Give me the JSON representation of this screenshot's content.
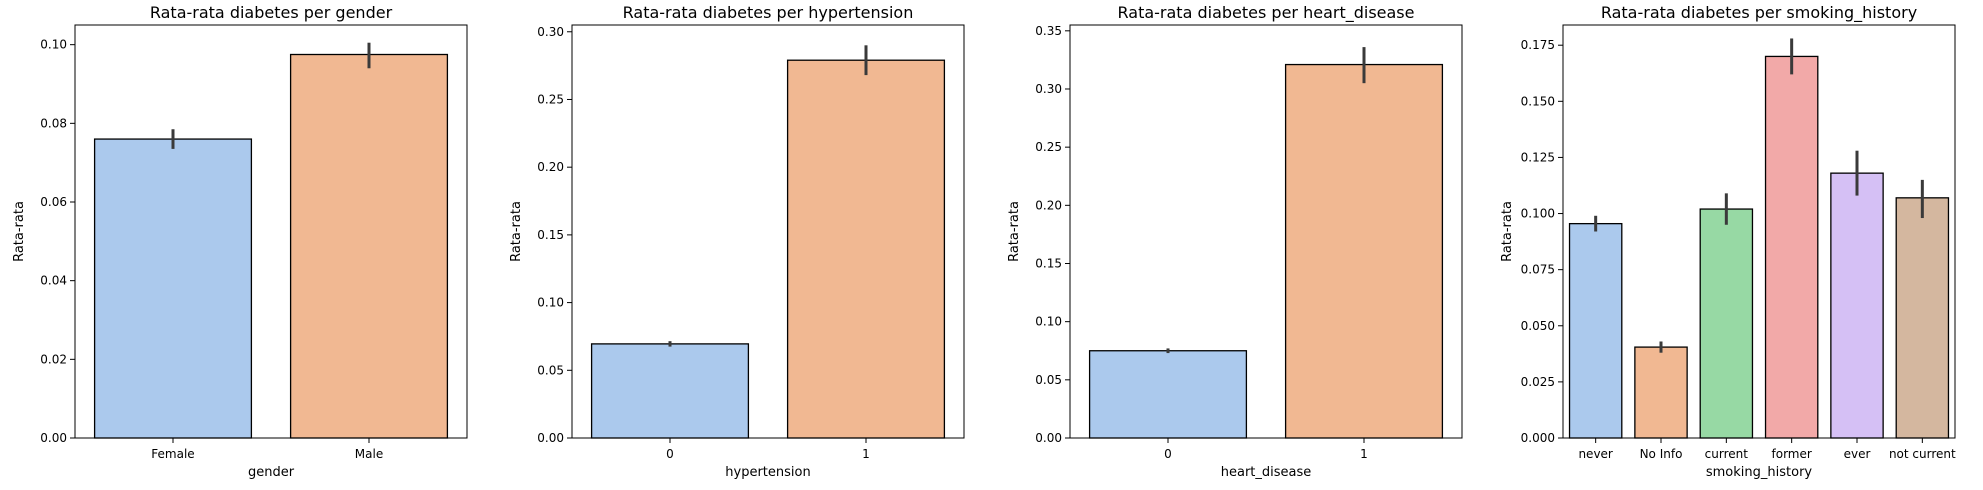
{
  "chart_data": [
    {
      "type": "bar",
      "title": "Rata-rata diabetes per gender",
      "xlabel": "gender",
      "ylabel": "Rata-rata",
      "categories": [
        "Female",
        "Male"
      ],
      "values": [
        0.076,
        0.0975
      ],
      "error_low": [
        0.0735,
        0.094
      ],
      "error_high": [
        0.0785,
        0.1005
      ],
      "ylim": [
        0,
        0.105
      ],
      "yticks": [
        0.0,
        0.02,
        0.04,
        0.06,
        0.08,
        0.1
      ],
      "ytick_labels": [
        "0.00",
        "0.02",
        "0.04",
        "0.06",
        "0.08",
        "0.10"
      ],
      "colors": [
        "#abc9ed",
        "#f1b892"
      ]
    },
    {
      "type": "bar",
      "title": "Rata-rata diabetes per hypertension",
      "xlabel": "hypertension",
      "ylabel": "Rata-rata",
      "categories": [
        "0",
        "1"
      ],
      "values": [
        0.0695,
        0.279
      ],
      "error_low": [
        0.0675,
        0.268
      ],
      "error_high": [
        0.0715,
        0.29
      ],
      "ylim": [
        0,
        0.305
      ],
      "yticks": [
        0.0,
        0.05,
        0.1,
        0.15,
        0.2,
        0.25,
        0.3
      ],
      "ytick_labels": [
        "0.00",
        "0.05",
        "0.10",
        "0.15",
        "0.20",
        "0.25",
        "0.30"
      ],
      "colors": [
        "#abc9ed",
        "#f1b892"
      ]
    },
    {
      "type": "bar",
      "title": "Rata-rata diabetes per heart_disease",
      "xlabel": "heart_disease",
      "ylabel": "Rata-rata",
      "categories": [
        "0",
        "1"
      ],
      "values": [
        0.075,
        0.321
      ],
      "error_low": [
        0.073,
        0.305
      ],
      "error_high": [
        0.077,
        0.336
      ],
      "ylim": [
        0,
        0.355
      ],
      "yticks": [
        0.0,
        0.05,
        0.1,
        0.15,
        0.2,
        0.25,
        0.3,
        0.35
      ],
      "ytick_labels": [
        "0.00",
        "0.05",
        "0.10",
        "0.15",
        "0.20",
        "0.25",
        "0.30",
        "0.35"
      ],
      "colors": [
        "#abc9ed",
        "#f1b892"
      ]
    },
    {
      "type": "bar",
      "title": "Rata-rata diabetes per smoking_history",
      "xlabel": "smoking_history",
      "ylabel": "Rata-rata",
      "categories": [
        "never",
        "No Info",
        "current",
        "former",
        "ever",
        "not current"
      ],
      "values": [
        0.0955,
        0.0405,
        0.102,
        0.17,
        0.118,
        0.107
      ],
      "error_low": [
        0.092,
        0.038,
        0.095,
        0.162,
        0.108,
        0.098
      ],
      "error_high": [
        0.099,
        0.043,
        0.109,
        0.178,
        0.128,
        0.115
      ],
      "ylim": [
        0,
        0.184
      ],
      "yticks": [
        0.0,
        0.025,
        0.05,
        0.075,
        0.1,
        0.125,
        0.15,
        0.175
      ],
      "ytick_labels": [
        "0.000",
        "0.025",
        "0.050",
        "0.075",
        "0.100",
        "0.125",
        "0.150",
        "0.175"
      ],
      "colors": [
        "#abc9ed",
        "#f1b892",
        "#97d9a4",
        "#f2a9a8",
        "#d5c0f5",
        "#d4b79f"
      ]
    }
  ]
}
